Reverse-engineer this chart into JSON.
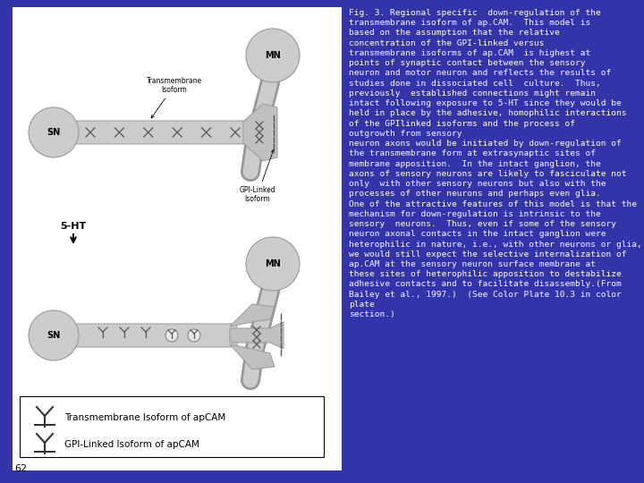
{
  "background_color": "#3333aa",
  "text_color": "#ffffff",
  "caption_text": "Fig. 3. Regional specific  down-regulation of the\ntransmembrane isoform of ap.CAM.  This model is\nbased on the assumption that the relative\nconcentration of the GPI-linked versus\ntransmembrane isoforms of ap.CAM  is highest at\npoints of synaptic contact between the sensory\nneuron and motor neuron and reflects the results of\nstudies done in dissociated cell  culture.  Thus,\npreviously  established connections might remain\nintact following exposure to 5-HT since they would be\nheld in place by the adhesive, homophilic interactions\nof the GPIlinked isoforms and the process of\noutgrowth from sensory\nneuron axons would be initiated by down-regulation of\nthe transmembrane form at extrasynaptic sites of\nmembrane apposition.  In the intact ganglion, the\naxons of sensory neurons are likely to fasciculate not\nonly  with other sensory neurons but also with the\nprocesses of other neurons and perhaps even glia.\nOne of the attractive features of this model is that the\nmechanism for down-regulation is intrinsic to the\nsensory  neurons.  Thus, even if some of the sensory\nneuron axonal contacts in the intact ganglion were\nheterophilic in nature, i.e., with other neurons or glia,\nwe would still expect the selective internalization of\nap.CAM at the sensory neuron surface membrane at\nthese sites of heterophilic apposition to destabilize\nadhesive contacts and to facilitate disassembly.(From\nBailey et al., 1997.)  (See Color Plate 10.3 in color\nplate\nsection.)",
  "font_size_caption": 6.8,
  "page_number": "62",
  "neuron_fill": "#cccccc",
  "neuron_edge": "#999999",
  "legend_label1": "Transmembrane Isoform of apCAM",
  "legend_label2": "GPI-Linked Isoform of apCAM"
}
